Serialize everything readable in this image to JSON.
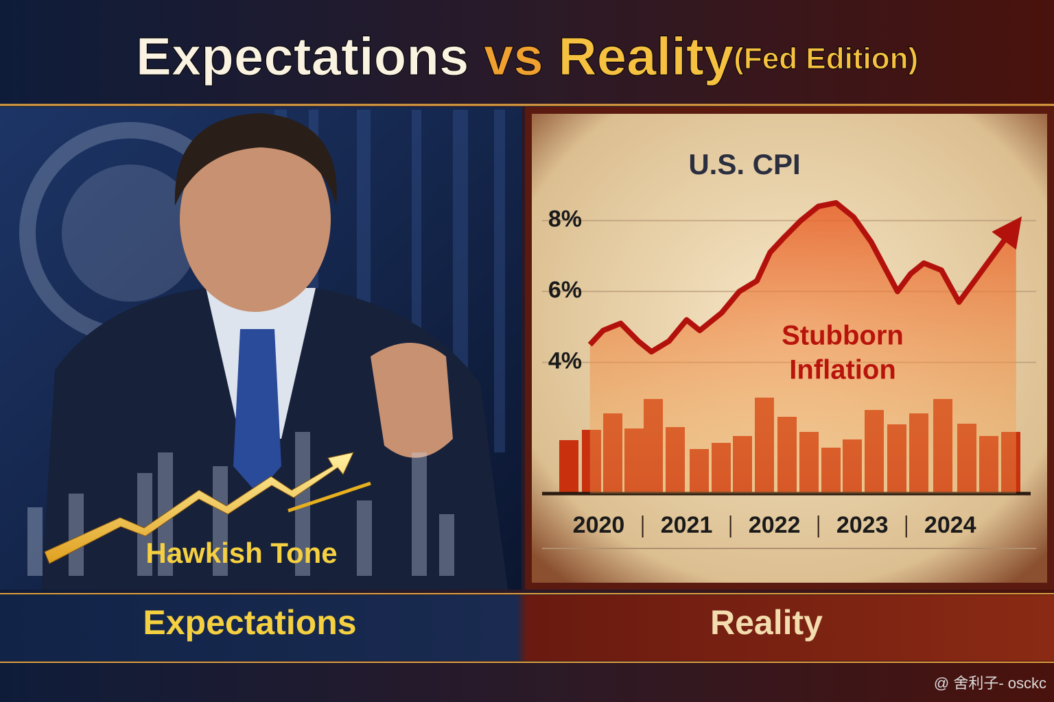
{
  "title": {
    "part1": "Expectations",
    "part2": "vs",
    "part3": "Reality",
    "part4": "(Fed Edition)"
  },
  "left": {
    "annotation": "Hawkish Tone",
    "label": "Expectations"
  },
  "right": {
    "label": "Reality"
  },
  "chart_data": {
    "type": "line",
    "title": "U.S. CPI",
    "annotation": [
      "Stubborn",
      "Inflation"
    ],
    "x": [
      2019.9,
      2020.05,
      2020.25,
      2020.45,
      2020.6,
      2020.8,
      2021.0,
      2021.15,
      2021.4,
      2021.6,
      2021.8,
      2021.95,
      2022.1,
      2022.3,
      2022.5,
      2022.7,
      2022.9,
      2023.1,
      2023.25,
      2023.4,
      2023.55,
      2023.7,
      2023.9,
      2024.1,
      2024.75
    ],
    "series": [
      {
        "color": "#b3120c",
        "values": [
          4.5,
          4.9,
          5.1,
          4.6,
          4.3,
          4.6,
          5.2,
          4.9,
          5.4,
          6.0,
          6.3,
          7.1,
          7.5,
          8.0,
          8.4,
          8.5,
          8.1,
          7.4,
          6.7,
          6.0,
          6.5,
          6.8,
          6.6,
          5.7,
          7.9
        ]
      }
    ],
    "xlim": [
      2019.59,
      2024.9
    ],
    "xticks": [
      2020,
      2021,
      2022,
      2023,
      2024
    ],
    "ylim": [
      0.3,
      9
    ],
    "yticks": [
      {
        "value": 4,
        "label": "4%"
      },
      {
        "value": 6,
        "label": "6%"
      },
      {
        "value": 8,
        "label": "8%"
      }
    ],
    "grid": true
  },
  "watermark": "@ 舍利子- osckc"
}
